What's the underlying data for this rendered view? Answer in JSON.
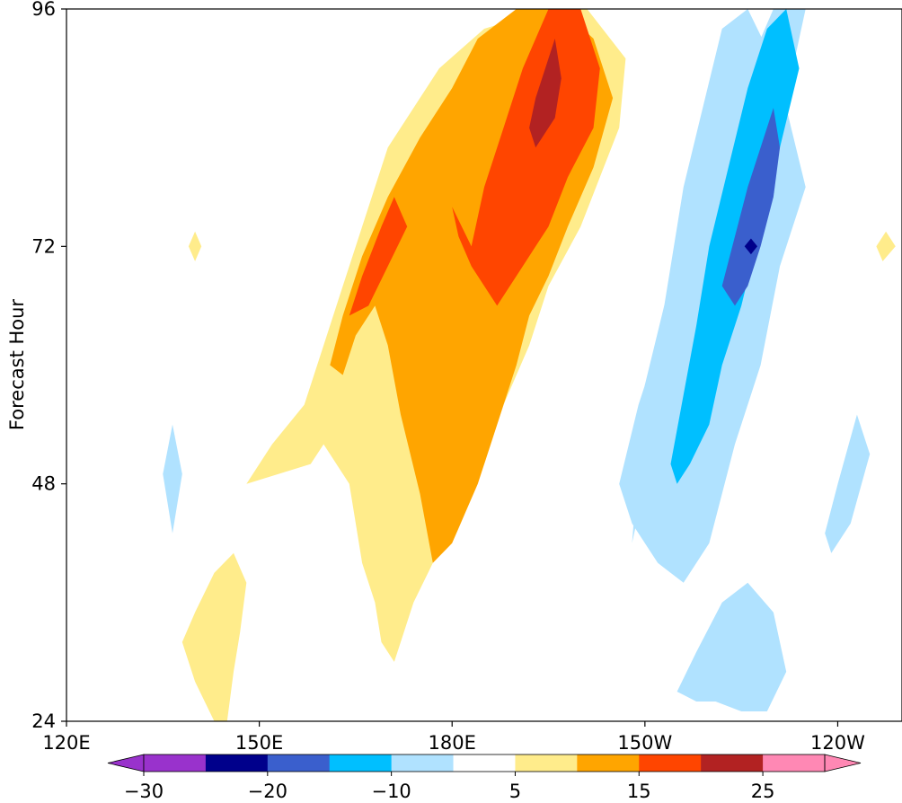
{
  "chart_data": {
    "type": "heatmap",
    "ylabel": "Forecast Hour",
    "xlabel": "",
    "title": "",
    "x_ticks": [
      "120E",
      "150E",
      "180E",
      "150W",
      "120W"
    ],
    "x_tick_lon": [
      120,
      150,
      180,
      210,
      240
    ],
    "xlim_lon": [
      120,
      250
    ],
    "y_ticks": [
      24,
      48,
      72,
      96
    ],
    "ylim": [
      24,
      96
    ],
    "grid": false,
    "colorbar": {
      "orientation": "horizontal",
      "placement": "bottom",
      "extend": "both",
      "levels": [
        -30,
        -25,
        -20,
        -15,
        -10,
        -5,
        5,
        10,
        15,
        20,
        25,
        30
      ],
      "tick_labels": [
        "−30",
        "−20",
        "−10",
        "5",
        "15",
        "25"
      ],
      "tick_values": [
        -30,
        -20,
        -10,
        5,
        15,
        25
      ],
      "colors": [
        "#9932cc",
        "#00008b",
        "#3a5fcd",
        "#00bfff",
        "#b0e2ff",
        "#ffffff",
        "#ffec8b",
        "#ffa500",
        "#ff4500",
        "#b22222",
        "#ff88b4"
      ]
    },
    "regions": [
      {
        "level": 5,
        "lon": [
          148,
          152,
          157,
          160,
          163,
          166,
          170,
          178,
          185,
          195,
          201,
          207,
          206,
          200,
          195,
          192,
          188,
          185,
          182,
          178,
          177,
          174,
          172,
          171,
          169,
          168,
          166,
          164,
          160,
          158
        ],
        "hour": [
          48,
          52,
          56,
          62,
          68,
          74,
          82,
          90,
          94,
          96,
          96,
          91,
          84,
          74,
          68,
          62,
          56,
          50,
          46,
          44,
          40,
          36,
          32,
          30,
          32,
          36,
          40,
          48,
          52,
          50
        ]
      },
      {
        "level": 10,
        "lon": [
          161,
          163,
          166,
          170,
          175,
          180,
          184,
          190,
          197,
          202,
          205,
          202,
          198,
          195,
          192,
          190,
          188,
          186,
          184,
          182,
          180,
          177,
          175,
          172,
          170,
          168,
          165,
          163
        ],
        "hour": [
          60,
          65,
          71,
          77,
          83,
          88,
          93,
          96,
          96,
          93,
          87,
          80,
          74,
          69,
          65,
          60,
          56,
          52,
          48,
          45,
          42,
          40,
          47,
          55,
          62,
          66,
          63,
          59
        ]
      },
      {
        "level": 15,
        "lon": [
          164,
          166,
          169,
          171,
          173,
          170,
          167
        ],
        "hour": [
          65,
          69,
          74,
          77,
          74,
          70,
          66
        ]
      },
      {
        "level": 15,
        "lon": [
          183,
          185,
          188,
          191,
          195,
          200,
          203,
          202,
          198,
          195,
          193,
          191,
          189,
          187,
          185,
          183,
          181,
          180
        ],
        "hour": [
          72,
          78,
          84,
          90,
          96,
          96,
          90,
          84,
          79,
          74,
          72,
          70,
          68,
          66,
          68,
          70,
          73,
          76
        ]
      },
      {
        "level": 20,
        "lon": [
          192,
          193,
          195,
          196,
          197,
          196,
          194,
          193
        ],
        "hour": [
          84,
          87,
          91,
          93,
          89,
          85,
          83,
          82
        ]
      },
      {
        "level": -5,
        "lon": [
          208,
          210,
          213,
          216,
          219,
          223,
          226,
          229,
          233,
          235,
          233,
          230,
          226,
          223,
          219,
          216,
          213,
          210
        ],
        "hour": [
          42,
          48,
          54,
          60,
          66,
          72,
          78,
          84,
          90,
          96,
          96,
          96,
          90,
          84,
          78,
          72,
          66,
          58
        ]
      },
      {
        "level": -5,
        "lon": [
          206,
          209,
          212,
          214,
          216,
          219,
          222,
          226,
          229,
          232,
          235,
          231,
          228,
          224,
          220,
          216,
          212,
          208
        ],
        "hour": [
          48,
          56,
          62,
          70,
          78,
          86,
          94,
          96,
          92,
          86,
          78,
          70,
          60,
          52,
          42,
          38,
          40,
          44
        ]
      },
      {
        "level": -10,
        "lon": [
          214,
          216,
          218,
          220,
          223,
          226,
          229,
          232,
          234,
          231,
          228,
          225,
          222,
          220,
          217,
          215
        ],
        "hour": [
          50,
          57,
          64,
          72,
          80,
          88,
          94,
          96,
          90,
          82,
          74,
          66,
          60,
          54,
          50,
          48
        ]
      },
      {
        "level": -15,
        "lon": [
          222,
          224,
          226,
          228,
          230,
          231,
          230,
          228,
          226,
          224,
          223
        ],
        "hour": [
          68,
          73,
          78,
          82,
          86,
          82,
          77,
          72,
          68,
          66,
          67
        ]
      },
      {
        "level": -20,
        "lon": [
          225.5,
          226.5,
          227.5,
          226.5
        ],
        "hour": [
          72,
          72.8,
          72,
          71.2
        ]
      },
      {
        "level": 5,
        "lon": [
          138,
          140,
          143,
          146,
          148,
          147,
          146,
          145,
          143,
          140
        ],
        "hour": [
          32,
          35,
          39,
          41,
          38,
          33,
          29,
          24,
          24,
          28
        ]
      },
      {
        "level": -5,
        "lon": [
          215,
          218,
          222,
          226,
          230,
          232,
          229,
          225,
          221,
          218
        ],
        "hour": [
          27,
          31,
          36,
          38,
          35,
          29,
          25,
          25,
          26,
          26
        ]
      },
      {
        "level": 5,
        "lon": [
          139,
          140,
          141,
          140
        ],
        "hour": [
          72,
          73.5,
          72,
          70.5
        ]
      },
      {
        "level": 5,
        "lon": [
          246,
          247.5,
          249,
          247
        ],
        "hour": [
          72,
          73.5,
          72,
          70.5
        ]
      },
      {
        "level": -5,
        "lon": [
          135,
          136.5,
          138,
          136.5
        ],
        "hour": [
          49,
          54,
          49,
          43
        ]
      },
      {
        "level": -5,
        "lon": [
          238,
          240,
          243,
          245,
          242,
          239
        ],
        "hour": [
          43,
          48,
          55,
          51,
          44,
          41
        ]
      }
    ]
  }
}
